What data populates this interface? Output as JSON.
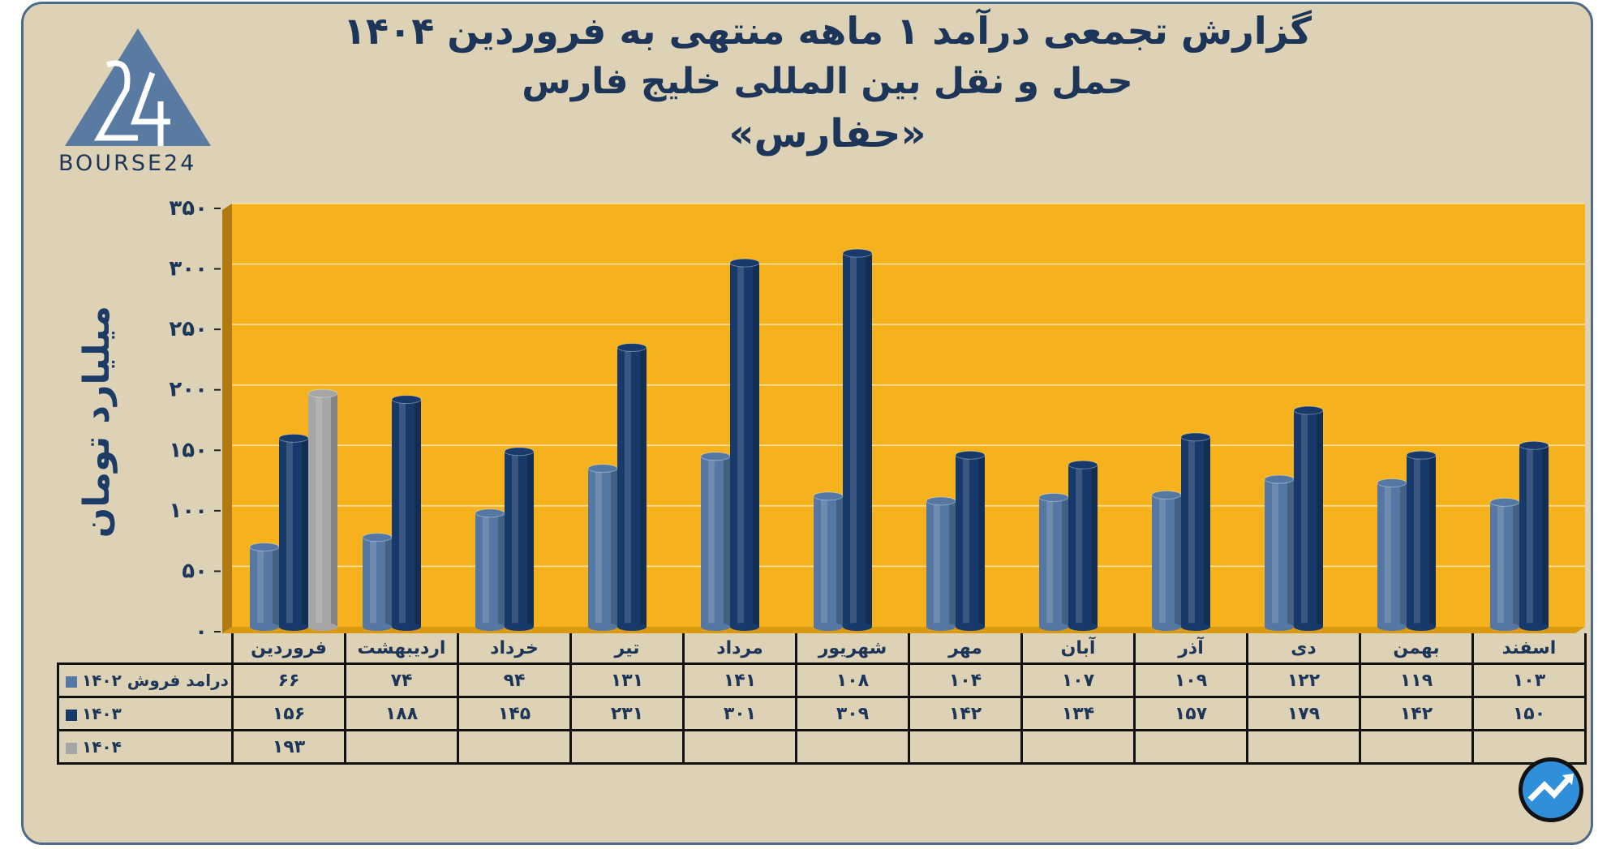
{
  "header": {
    "title_line1": "گزارش تجمعی درآمد ۱ ماهه منتهی به فروردین ۱۴۰۴",
    "title_line2": "حمل و نقل بین المللی خلیج فارس",
    "title_line3": "«حفارس»",
    "logo_text": "BOURSE24"
  },
  "colors": {
    "background": "#ddd2b5",
    "plot": "#f6b21c",
    "series_1402": "#5478a3",
    "series_1403": "#173a6a",
    "series_1404": "#a6a6a6",
    "text": "#1c3558"
  },
  "chart_data": {
    "type": "bar",
    "title": "گزارش تجمعی درآمد ۱ ماهه منتهی به فروردین ۱۴۰۴",
    "ylabel": "میلیارد تومان",
    "ylim": [
      0,
      350
    ],
    "yticks": [
      0,
      50,
      100,
      150,
      200,
      250,
      300,
      350
    ],
    "ytick_labels": [
      "۰",
      "۵۰",
      "۱۰۰",
      "۱۵۰",
      "۲۰۰",
      "۲۵۰",
      "۳۰۰",
      "۳۵۰"
    ],
    "grid": true,
    "categories": [
      "فروردین",
      "اردیبهشت",
      "خرداد",
      "تیر",
      "مرداد",
      "شهریور",
      "مهر",
      "آبان",
      "آذر",
      "دی",
      "بهمن",
      "اسفند"
    ],
    "series": [
      {
        "name": "درامد فروش ۱۴۰۲",
        "values": [
          66,
          74,
          94,
          131,
          141,
          108,
          104,
          107,
          109,
          122,
          119,
          103
        ],
        "labels": [
          "۶۶",
          "۷۴",
          "۹۴",
          "۱۳۱",
          "۱۴۱",
          "۱۰۸",
          "۱۰۴",
          "۱۰۷",
          "۱۰۹",
          "۱۲۲",
          "۱۱۹",
          "۱۰۳"
        ],
        "color": "#5478a3"
      },
      {
        "name": "۱۴۰۳",
        "values": [
          156,
          188,
          145,
          231,
          301,
          309,
          142,
          134,
          157,
          179,
          142,
          150
        ],
        "labels": [
          "۱۵۶",
          "۱۸۸",
          "۱۴۵",
          "۲۳۱",
          "۳۰۱",
          "۳۰۹",
          "۱۴۲",
          "۱۳۴",
          "۱۵۷",
          "۱۷۹",
          "۱۴۲",
          "۱۵۰"
        ],
        "color": "#173a6a"
      },
      {
        "name": "۱۴۰۴",
        "values": [
          193,
          null,
          null,
          null,
          null,
          null,
          null,
          null,
          null,
          null,
          null,
          null
        ],
        "labels": [
          "۱۹۳",
          "",
          "",
          "",
          "",
          "",
          "",
          "",
          "",
          "",
          "",
          ""
        ],
        "color": "#a6a6a6"
      }
    ],
    "legend": "data-table-below"
  }
}
